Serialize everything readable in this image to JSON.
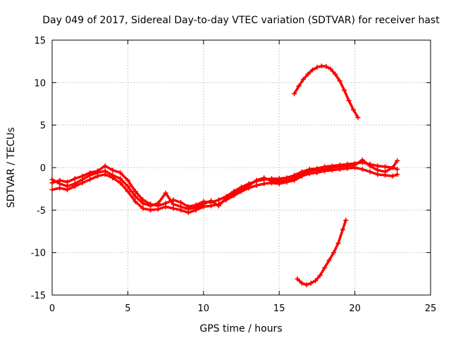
{
  "chart_data": {
    "type": "scatter",
    "title": "Day 049 of 2017, Sidereal Day-to-day VTEC variation (SDTVAR) for receiver hast",
    "xlabel": "GPS time / hours",
    "ylabel": "SDTVAR / TECUs",
    "xlim": [
      0,
      25
    ],
    "ylim": [
      -15,
      15
    ],
    "xticks": [
      0,
      5,
      10,
      15,
      20,
      25
    ],
    "xtick_labels": [
      "0",
      "5",
      "10",
      "15",
      "20",
      "25"
    ],
    "yticks": [
      -15,
      -10,
      -5,
      0,
      5,
      10,
      15
    ],
    "ytick_labels": [
      "-15",
      "-10",
      "-5",
      "0",
      "5",
      "10",
      "15"
    ],
    "grid": true,
    "marker": "plus",
    "series_color": "#ff0000",
    "series": [
      {
        "name": "main-band-a",
        "x": [
          0,
          0.5,
          1,
          1.5,
          2,
          2.5,
          3,
          3.5,
          4,
          4.5,
          5,
          5.5,
          6,
          6.5,
          7,
          7.5,
          8,
          8.5,
          9,
          9.5,
          10,
          10.5,
          11,
          11.5,
          12,
          12.5,
          13,
          13.5,
          14,
          14.5,
          15,
          15.5,
          16,
          16.5,
          17,
          17.5,
          18,
          18.5,
          19,
          19.5,
          20,
          20.5,
          21,
          21.5,
          22,
          22.5,
          22.8
        ],
        "y": [
          -1.8,
          -1.5,
          -1.7,
          -1.3,
          -1.0,
          -0.6,
          -0.4,
          0.2,
          -0.3,
          -0.6,
          -1.5,
          -2.8,
          -3.8,
          -4.3,
          -4.5,
          -4.2,
          -3.8,
          -4.1,
          -4.6,
          -4.4,
          -4.0,
          -4.1,
          -3.8,
          -3.4,
          -2.8,
          -2.3,
          -1.9,
          -1.6,
          -1.4,
          -1.3,
          -1.3,
          -1.2,
          -0.9,
          -0.5,
          -0.2,
          -0.1,
          0.1,
          0.2,
          0.3,
          0.4,
          0.5,
          0.6,
          0.4,
          0.2,
          0.1,
          0.0,
          -0.2
        ]
      },
      {
        "name": "main-band-b",
        "x": [
          0,
          0.5,
          1,
          1.5,
          2,
          2.5,
          3,
          3.5,
          4,
          4.5,
          5,
          5.5,
          6,
          6.5,
          7,
          7.5,
          8,
          8.5,
          9,
          9.5,
          10,
          10.5,
          11,
          11.5,
          12,
          12.5,
          13,
          13.5,
          14,
          14.5,
          15,
          15.5,
          16,
          16.5,
          17,
          17.5,
          18,
          18.5,
          19,
          19.5,
          20,
          20.5,
          21,
          21.5,
          22,
          22.5,
          22.8
        ],
        "y": [
          -2.6,
          -2.4,
          -2.6,
          -2.2,
          -1.8,
          -1.4,
          -1.0,
          -0.8,
          -1.2,
          -1.8,
          -2.8,
          -4.0,
          -4.8,
          -5.0,
          -4.9,
          -4.6,
          -4.8,
          -5.0,
          -5.3,
          -5.0,
          -4.6,
          -4.5,
          -4.3,
          -3.8,
          -3.3,
          -2.8,
          -2.4,
          -2.1,
          -1.9,
          -1.8,
          -1.9,
          -1.7,
          -1.5,
          -1.0,
          -0.7,
          -0.6,
          -0.4,
          -0.3,
          -0.2,
          -0.1,
          0.0,
          -0.2,
          -0.5,
          -0.8,
          -0.9,
          -1.0,
          -0.8
        ]
      },
      {
        "name": "main-band-c",
        "x": [
          0,
          0.5,
          1,
          1.5,
          2,
          2.5,
          3,
          3.5,
          4,
          4.5,
          5,
          5.5,
          6,
          6.5,
          7,
          7.5,
          8,
          8.5,
          9,
          9.5,
          10,
          10.5,
          11,
          11.5,
          12,
          12.5,
          13,
          13.5,
          14,
          14.5,
          15,
          15.5,
          16,
          16.5,
          17,
          17.5,
          18,
          18.5,
          19,
          19.5,
          20,
          20.5,
          21,
          21.5,
          22,
          22.5,
          22.8
        ],
        "y": [
          -1.4,
          -1.9,
          -2.2,
          -1.9,
          -1.4,
          -0.9,
          -0.6,
          -0.4,
          -0.9,
          -1.3,
          -2.2,
          -3.4,
          -4.2,
          -4.5,
          -4.2,
          -3.0,
          -4.3,
          -4.6,
          -4.9,
          -4.7,
          -4.3,
          -3.9,
          -4.5,
          -3.6,
          -3.0,
          -2.5,
          -2.1,
          -1.5,
          -1.2,
          -1.6,
          -1.6,
          -1.5,
          -1.2,
          -0.8,
          -0.4,
          -0.3,
          -0.2,
          0.0,
          0.1,
          0.2,
          0.3,
          0.9,
          0.2,
          -0.3,
          -0.5,
          0.0,
          0.8
        ]
      },
      {
        "name": "upper-arc",
        "x": [
          16.0,
          16.3,
          16.6,
          16.9,
          17.2,
          17.5,
          17.8,
          18.1,
          18.4,
          18.7,
          19.0,
          19.3,
          19.6,
          19.9,
          20.2
        ],
        "y": [
          8.7,
          9.6,
          10.4,
          11.0,
          11.5,
          11.8,
          11.95,
          11.9,
          11.6,
          11.0,
          10.2,
          9.1,
          7.9,
          6.8,
          5.9
        ]
      },
      {
        "name": "lower-arc",
        "x": [
          16.2,
          16.5,
          16.8,
          17.1,
          17.4,
          17.7,
          18.0,
          18.3,
          18.6,
          18.9,
          19.2,
          19.4
        ],
        "y": [
          -13.1,
          -13.6,
          -13.8,
          -13.6,
          -13.3,
          -12.7,
          -11.8,
          -10.9,
          -10.0,
          -8.9,
          -7.3,
          -6.2
        ]
      }
    ]
  }
}
